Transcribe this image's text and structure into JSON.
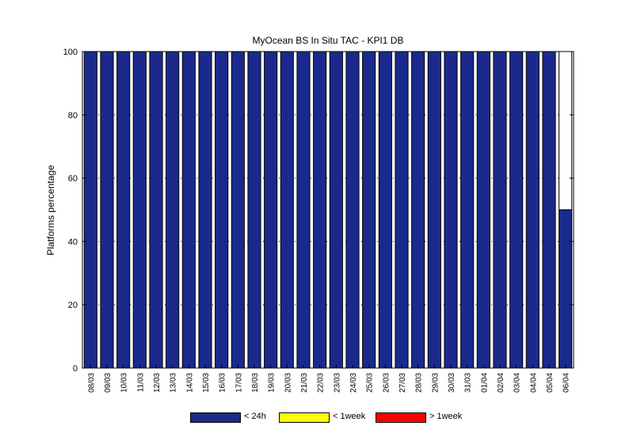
{
  "chart_data": {
    "type": "bar",
    "stacked": true,
    "title": "MyOcean  BS In Situ TAC - KPI1  DB",
    "xlabel": "",
    "ylabel": "Platforms percentage",
    "ylim": [
      0,
      100
    ],
    "yticks": [
      0,
      20,
      40,
      60,
      80,
      100
    ],
    "grid": true,
    "legend_position": "bottom",
    "categories": [
      "08/03",
      "09/03",
      "10/03",
      "11/03",
      "12/03",
      "13/03",
      "14/03",
      "15/03",
      "16/03",
      "17/03",
      "18/03",
      "19/03",
      "20/03",
      "21/03",
      "22/03",
      "23/03",
      "24/03",
      "25/03",
      "26/03",
      "27/03",
      "28/03",
      "29/03",
      "30/03",
      "31/03",
      "01/04",
      "02/04",
      "03/04",
      "04/04",
      "05/04",
      "06/04"
    ],
    "series": [
      {
        "name": "< 24h",
        "color": "#1a2a8c",
        "values": [
          100,
          100,
          100,
          100,
          100,
          100,
          100,
          100,
          100,
          100,
          100,
          100,
          100,
          100,
          100,
          100,
          100,
          100,
          100,
          100,
          100,
          100,
          100,
          100,
          100,
          100,
          100,
          100,
          100,
          50
        ]
      },
      {
        "name": "< 1week",
        "color": "#ffff00",
        "values": [
          0,
          0,
          0,
          0,
          0,
          0,
          0,
          0,
          0,
          0,
          0,
          0,
          0,
          0,
          0,
          0,
          0,
          0,
          0,
          0,
          0,
          0,
          0,
          0,
          0,
          0,
          0,
          0,
          0,
          0
        ]
      },
      {
        "name": "> 1week",
        "color": "#ff0000",
        "values": [
          0,
          0,
          0,
          0,
          0,
          0,
          0,
          0,
          0,
          0,
          0,
          0,
          0,
          0,
          0,
          0,
          0,
          0,
          0,
          0,
          0,
          0,
          0,
          0,
          0,
          0,
          0,
          0,
          0,
          0
        ]
      }
    ]
  }
}
